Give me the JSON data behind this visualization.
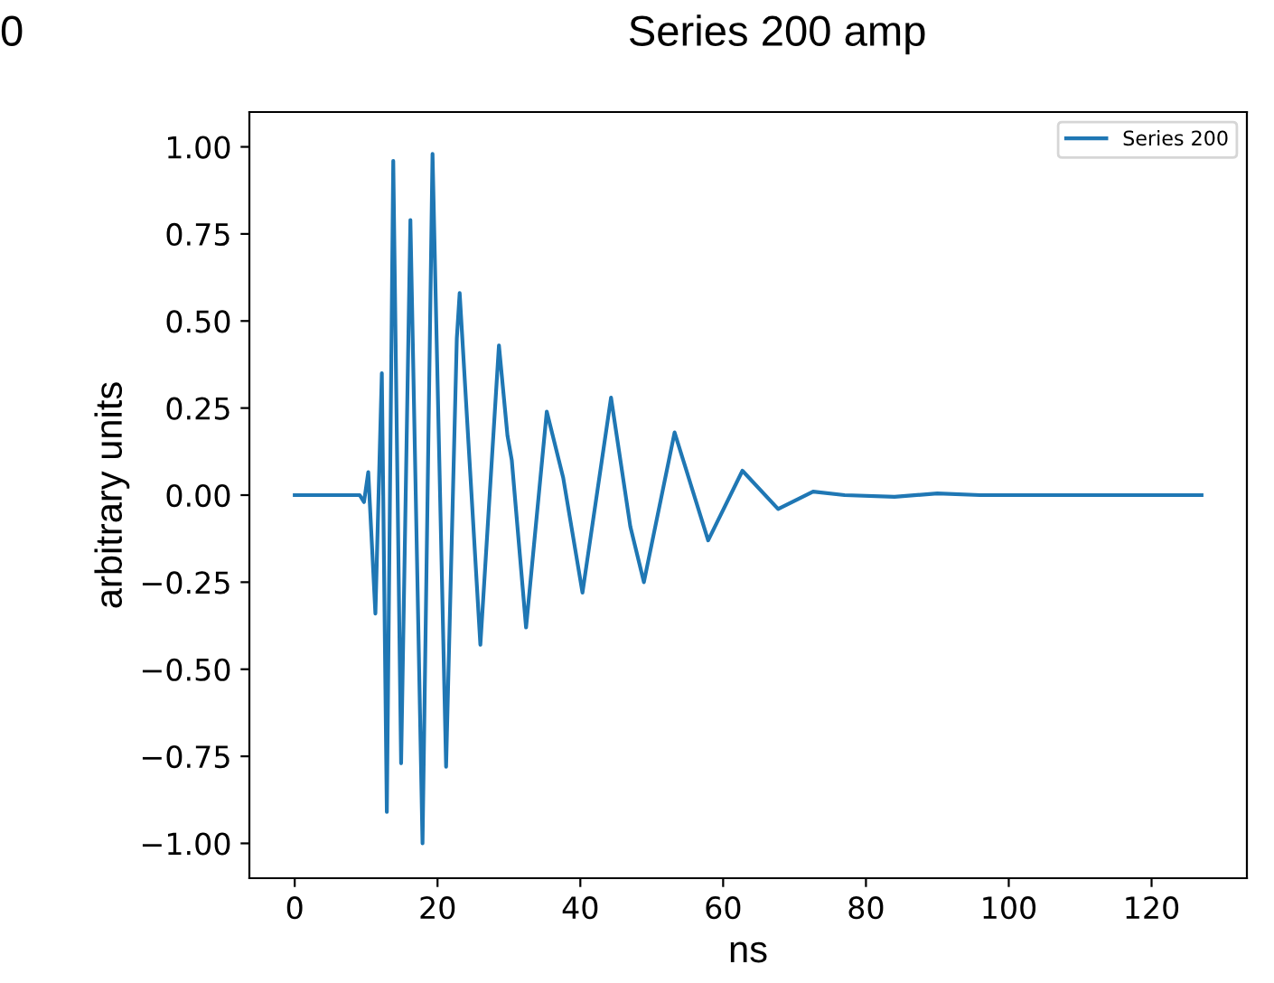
{
  "chart_data": {
    "type": "line",
    "title": "Series 200 amp",
    "xlabel": "ns",
    "ylabel": "arbitrary units",
    "annotations": [
      "0"
    ],
    "series": [
      {
        "name": "Series 200",
        "color": "#1f77b4",
        "x": [
          0,
          5,
          9.1,
          9.7,
          10.3,
          11.3,
          12.2,
          12.9,
          13.8,
          14.9,
          16.2,
          17.9,
          19.3,
          21.2,
          22.7,
          23.1,
          26.0,
          28.6,
          29.8,
          30.4,
          32.4,
          35.3,
          37.6,
          40.3,
          41.8,
          44.3,
          47.0,
          48.9,
          53.2,
          57.9,
          62.7,
          67.7,
          72.6,
          77,
          84,
          90,
          96,
          110,
          127
        ],
        "values": [
          0,
          0,
          0,
          -0.02,
          0.066,
          -0.34,
          0.35,
          -0.91,
          0.96,
          -0.77,
          0.79,
          -1.0,
          0.98,
          -0.78,
          0.45,
          0.58,
          -0.43,
          0.43,
          0.17,
          0.1,
          -0.38,
          0.24,
          0.05,
          -0.28,
          -0.07,
          0.28,
          -0.09,
          -0.25,
          0.18,
          -0.13,
          0.07,
          -0.04,
          0.01,
          0,
          -0.005,
          0.005,
          0,
          0,
          0
        ]
      }
    ],
    "xlim": [
      -6.35,
      133.35
    ],
    "ylim": [
      -1.1,
      1.1
    ],
    "xticks": [
      0,
      20,
      40,
      60,
      80,
      100,
      120
    ],
    "yticks": [
      {
        "value": 1,
        "label": "1.00"
      },
      {
        "value": 0.75,
        "label": "0.75"
      },
      {
        "value": 0.5,
        "label": "0.50"
      },
      {
        "value": 0.25,
        "label": "0.25"
      },
      {
        "value": 0,
        "label": "0.00"
      },
      {
        "value": -0.25,
        "label": "−0.25"
      },
      {
        "value": -0.5,
        "label": "−0.50"
      },
      {
        "value": -0.75,
        "label": "−0.75"
      },
      {
        "value": -1,
        "label": "−1.00"
      }
    ],
    "legend": "top right",
    "grid": false,
    "marker": "none",
    "line_style": "solid"
  }
}
